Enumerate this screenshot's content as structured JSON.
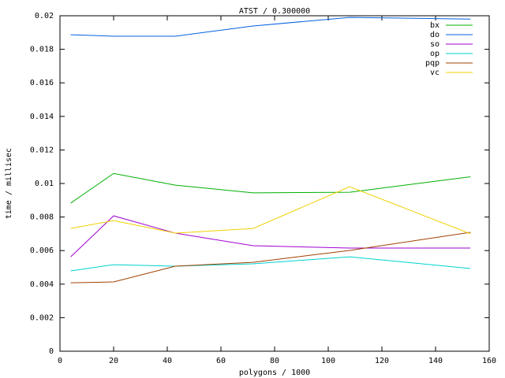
{
  "chart_data": {
    "type": "line",
    "title": "ATST / 0.300000",
    "x_label": "polygons / 1000",
    "y_label": "time / millisec",
    "x": [
      4,
      20,
      43,
      72,
      108,
      153
    ],
    "xlim": [
      0,
      160
    ],
    "xticks": [
      0,
      20,
      40,
      60,
      80,
      100,
      120,
      140,
      160
    ],
    "ylim": [
      0,
      0.02
    ],
    "yticks": [
      0,
      0.002,
      0.004,
      0.006,
      0.008,
      0.01,
      0.012,
      0.014,
      0.016,
      0.018,
      0.02
    ],
    "legend": "top-right",
    "series": [
      {
        "name": "bx",
        "color": "#00b000",
        "values": [
          0.00883,
          0.0106,
          0.0099,
          0.00944,
          0.00948,
          0.0104
        ]
      },
      {
        "name": "do",
        "color": "#0060e0",
        "values": [
          0.01887,
          0.01878,
          0.01878,
          0.01939,
          0.0199,
          0.0198
        ]
      },
      {
        "name": "so",
        "color": "#a000d0",
        "values": [
          0.00563,
          0.00807,
          0.00704,
          0.00629,
          0.00615,
          0.00615
        ]
      },
      {
        "name": "op",
        "color": "#00d0d0",
        "values": [
          0.00479,
          0.00516,
          0.00507,
          0.00521,
          0.00563,
          0.00493
        ]
      },
      {
        "name": "pqp",
        "color": "#a04000",
        "values": [
          0.00408,
          0.00413,
          0.00507,
          0.0053,
          0.00601,
          0.00709
        ]
      },
      {
        "name": "vc",
        "color": "#f0d000",
        "values": [
          0.00732,
          0.00779,
          0.00704,
          0.00732,
          0.00981,
          0.007
        ]
      }
    ]
  }
}
